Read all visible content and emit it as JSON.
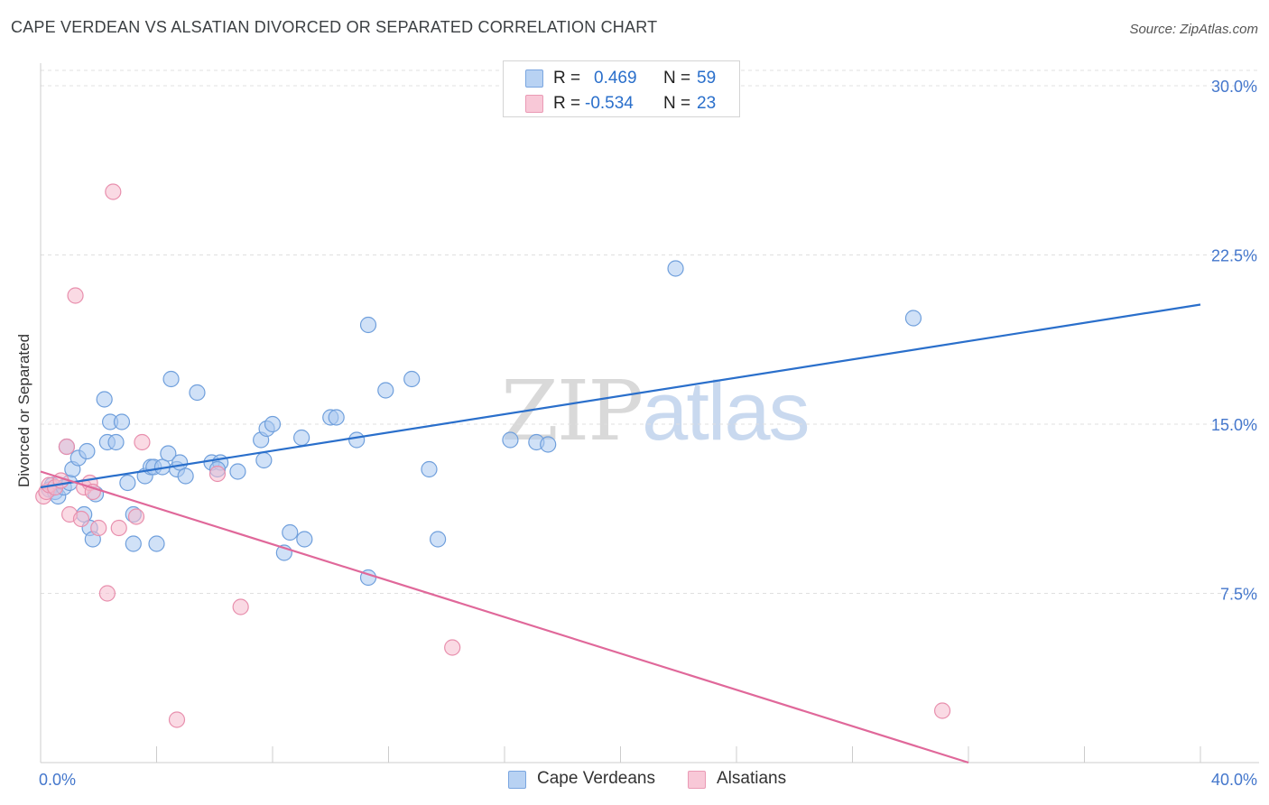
{
  "title": "CAPE VERDEAN VS ALSATIAN DIVORCED OR SEPARATED CORRELATION CHART",
  "source": "Source: ZipAtlas.com",
  "watermark": {
    "zip": "ZIP",
    "atlas": "atlas"
  },
  "legend": {
    "rows": [
      {
        "r_label": "R =",
        "r_value": "0.469",
        "n_label": "N =",
        "n_value": "59"
      },
      {
        "r_label": "R =",
        "r_value": "-0.534",
        "n_label": "N =",
        "n_value": "23"
      }
    ]
  },
  "bottom_legend": [
    "Cape Verdeans",
    "Alsatians"
  ],
  "colors": {
    "blue_fill": "#aac8f0",
    "blue_stroke": "#6f9fdc",
    "blue_line": "#2a6fcb",
    "pink_fill": "#f6bccd",
    "pink_stroke": "#e88fad",
    "pink_line": "#e0689a",
    "tick_text": "#4477cc",
    "grid": "#e0e0e0"
  },
  "chart_data": {
    "type": "scatter",
    "title": "CAPE VERDEAN VS ALSATIAN DIVORCED OR SEPARATED CORRELATION CHART",
    "xlabel": "",
    "ylabel": "Divorced or Separated",
    "xlim": [
      0,
      40
    ],
    "ylim": [
      0,
      31
    ],
    "x_tick_labels": [
      "0.0%",
      "40.0%"
    ],
    "y_ticks": [
      7.5,
      15.0,
      22.5,
      30.0
    ],
    "y_tick_labels": [
      "7.5%",
      "15.0%",
      "22.5%",
      "30.0%"
    ],
    "grid": true,
    "legend_position": "top-center",
    "series": [
      {
        "name": "Cape Verdeans",
        "R": 0.469,
        "N": 59,
        "trend": {
          "x": [
            0,
            40
          ],
          "y": [
            12.2,
            20.3
          ]
        },
        "points": [
          [
            0.3,
            12.1
          ],
          [
            0.4,
            12.3
          ],
          [
            0.5,
            12.0
          ],
          [
            0.6,
            11.8
          ],
          [
            0.8,
            12.2
          ],
          [
            0.9,
            14.0
          ],
          [
            1.0,
            12.4
          ],
          [
            1.1,
            13.0
          ],
          [
            1.3,
            13.5
          ],
          [
            1.5,
            11.0
          ],
          [
            1.6,
            13.8
          ],
          [
            1.7,
            10.4
          ],
          [
            1.8,
            9.9
          ],
          [
            1.9,
            11.9
          ],
          [
            2.2,
            16.1
          ],
          [
            2.3,
            14.2
          ],
          [
            2.4,
            15.1
          ],
          [
            2.6,
            14.2
          ],
          [
            2.8,
            15.1
          ],
          [
            3.0,
            12.4
          ],
          [
            3.2,
            9.7
          ],
          [
            3.2,
            11.0
          ],
          [
            3.6,
            12.7
          ],
          [
            3.8,
            13.1
          ],
          [
            3.9,
            13.1
          ],
          [
            4.0,
            9.7
          ],
          [
            4.2,
            13.1
          ],
          [
            4.4,
            13.7
          ],
          [
            4.5,
            17.0
          ],
          [
            4.7,
            13.0
          ],
          [
            4.8,
            13.3
          ],
          [
            5.0,
            12.7
          ],
          [
            5.4,
            16.4
          ],
          [
            5.9,
            13.3
          ],
          [
            6.2,
            13.3
          ],
          [
            6.1,
            13.0
          ],
          [
            6.8,
            12.9
          ],
          [
            7.6,
            14.3
          ],
          [
            7.7,
            13.4
          ],
          [
            7.8,
            14.8
          ],
          [
            8.0,
            15.0
          ],
          [
            8.4,
            9.3
          ],
          [
            8.6,
            10.2
          ],
          [
            9.0,
            14.4
          ],
          [
            9.1,
            9.9
          ],
          [
            10.0,
            15.3
          ],
          [
            10.2,
            15.3
          ],
          [
            10.9,
            14.3
          ],
          [
            11.3,
            8.2
          ],
          [
            11.3,
            19.4
          ],
          [
            11.9,
            16.5
          ],
          [
            12.8,
            17.0
          ],
          [
            13.4,
            13.0
          ],
          [
            13.7,
            9.9
          ],
          [
            16.2,
            14.3
          ],
          [
            17.1,
            14.2
          ],
          [
            17.5,
            14.1
          ],
          [
            21.9,
            21.9
          ],
          [
            30.1,
            19.7
          ]
        ]
      },
      {
        "name": "Alsatians",
        "R": -0.534,
        "N": 23,
        "trend": {
          "x": [
            0,
            32.0
          ],
          "y": [
            12.9,
            0
          ]
        },
        "points": [
          [
            0.1,
            11.8
          ],
          [
            0.2,
            12.0
          ],
          [
            0.3,
            12.3
          ],
          [
            0.5,
            12.2
          ],
          [
            0.7,
            12.5
          ],
          [
            0.9,
            14.0
          ],
          [
            1.0,
            11.0
          ],
          [
            1.2,
            20.7
          ],
          [
            1.4,
            10.8
          ],
          [
            1.5,
            12.2
          ],
          [
            1.7,
            12.4
          ],
          [
            1.8,
            12.0
          ],
          [
            2.0,
            10.4
          ],
          [
            2.3,
            7.5
          ],
          [
            2.5,
            25.3
          ],
          [
            2.7,
            10.4
          ],
          [
            3.3,
            10.9
          ],
          [
            3.5,
            14.2
          ],
          [
            4.7,
            1.9
          ],
          [
            6.1,
            12.8
          ],
          [
            6.9,
            6.9
          ],
          [
            14.2,
            5.1
          ],
          [
            31.1,
            2.3
          ]
        ]
      }
    ]
  }
}
